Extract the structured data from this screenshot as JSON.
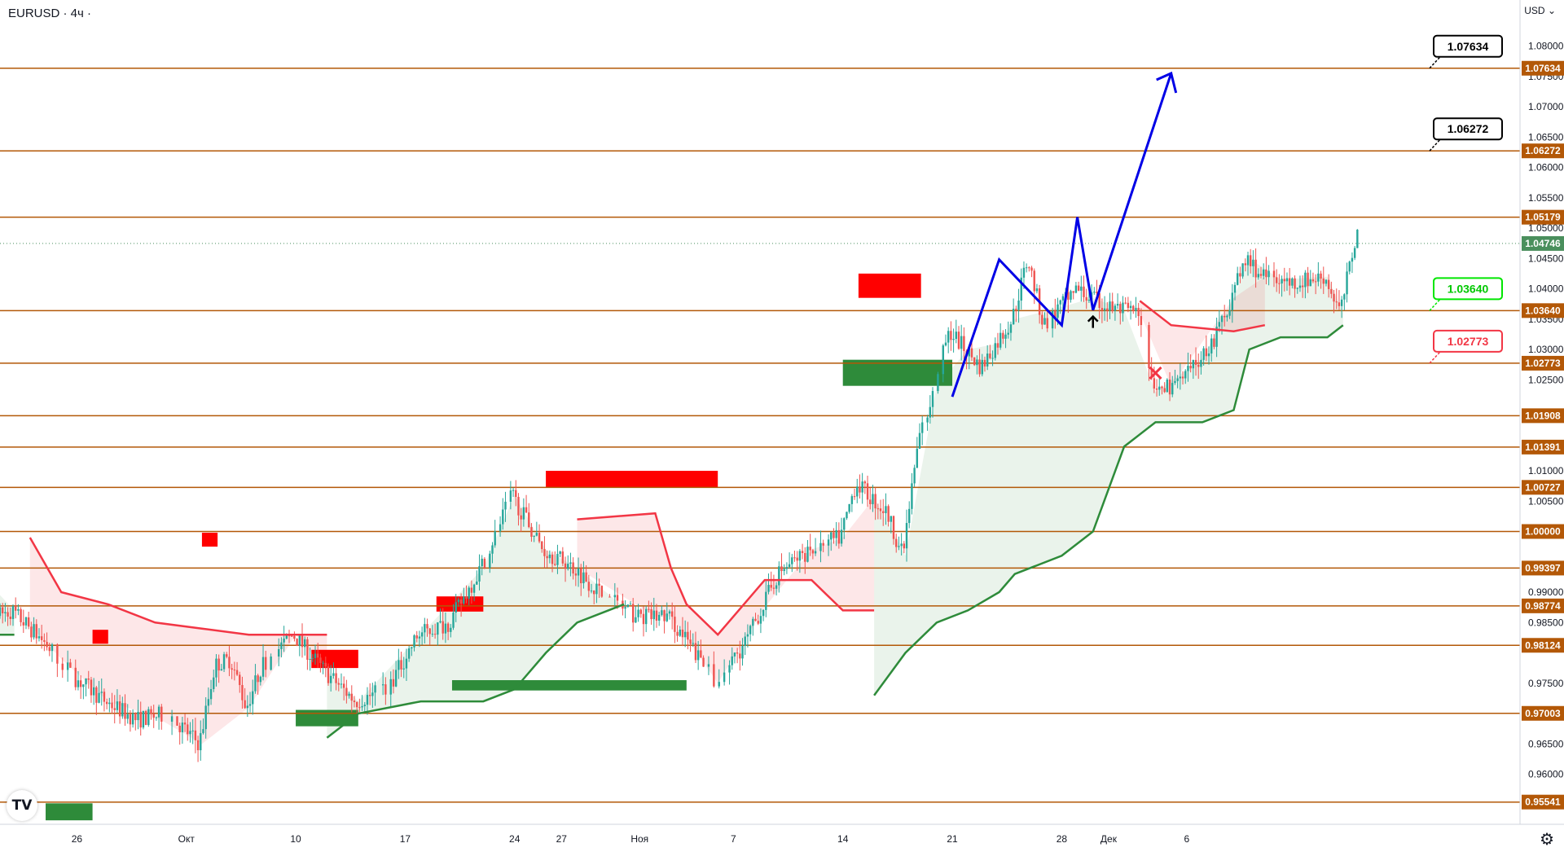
{
  "header": {
    "symbol": "EURUSD · 4ч ·",
    "currency": "USD"
  },
  "logo": {
    "text": "TV"
  },
  "icons": {
    "settings": "gear-icon"
  },
  "colors": {
    "level_line": "#b35807",
    "level_label_bg": "#b35807",
    "current_price_bg": "#4a8f5d",
    "target_box_border": "#000000",
    "entry_label_border": "#00e600",
    "entry_label_text": "#00c800",
    "stop_label_border": "#f23645",
    "stop_label_text": "#f23645",
    "forecast_line": "#0000e6",
    "supertrend_up": "#2e8b3a",
    "supertrend_down": "#f23645",
    "bull_candle": "#26a69a",
    "bear_candle": "#ef5350",
    "supply_zone": "#ff0000",
    "demand_zone": "#2e8b3a"
  },
  "chart_data": {
    "type": "candlestick",
    "symbol": "EURUSD",
    "timeframe": "4ч",
    "currency": "USD",
    "ylim": [
      0.952,
      1.0845
    ],
    "y_ticks": [
      "0.96000",
      "0.96500",
      "0.97500",
      "0.98500",
      "0.99000",
      "1.00500",
      "1.01000",
      "1.02500",
      "1.03000",
      "1.03500",
      "1.04000",
      "1.04500",
      "1.05000",
      "1.05500",
      "1.06000",
      "1.06500",
      "1.07000",
      "1.07500",
      "1.08000"
    ],
    "x_ticks": [
      "26",
      "Окт",
      "10",
      "17",
      "24",
      "27",
      "Ноя",
      "7",
      "14",
      "21",
      "28",
      "Дек",
      "6"
    ],
    "levels": [
      "1.07634",
      "1.06272",
      "1.05179",
      "1.03640",
      "1.02773",
      "1.01908",
      "1.01391",
      "1.00727",
      "1.00000",
      "0.99397",
      "0.98774",
      "0.98124",
      "0.97003",
      "0.95541"
    ],
    "current_price": "1.04746",
    "targets": [
      "1.07634",
      "1.06272"
    ],
    "entry": "1.03640",
    "stop": "1.02773",
    "forecast_path": [
      {
        "date": "2022-11-21",
        "price": 1.0222
      },
      {
        "date": "2022-11-24",
        "price": 1.0448
      },
      {
        "date": "2022-11-28",
        "price": 1.034
      },
      {
        "date": "2022-11-29",
        "price": 1.0518
      },
      {
        "date": "2022-11-30",
        "price": 1.0365
      },
      {
        "date": "2022-12-05",
        "price": 1.0755
      }
    ],
    "supply_zones": [
      {
        "from": "2022-09-27",
        "to": "2022-09-28",
        "low": 0.9815,
        "high": 0.9838
      },
      {
        "from": "2022-10-04",
        "to": "2022-10-05",
        "low": 0.9975,
        "high": 0.9998
      },
      {
        "from": "2022-10-11",
        "to": "2022-10-14",
        "low": 0.9775,
        "high": 0.9805
      },
      {
        "from": "2022-10-19",
        "to": "2022-10-22",
        "low": 0.9868,
        "high": 0.9893
      },
      {
        "from": "2022-10-26",
        "to": "2022-11-06",
        "low": 1.0072,
        "high": 1.01
      },
      {
        "from": "2022-11-15",
        "to": "2022-11-19",
        "low": 1.0385,
        "high": 1.0425
      }
    ],
    "demand_zones": [
      {
        "from": "2022-09-24",
        "to": "2022-09-27",
        "low": 0.9524,
        "high": 0.9552
      },
      {
        "from": "2022-10-10",
        "to": "2022-10-14",
        "low": 0.9679,
        "high": 0.9706
      },
      {
        "from": "2022-10-20",
        "to": "2022-11-04",
        "low": 0.9738,
        "high": 0.9755
      },
      {
        "from": "2022-11-14",
        "to": "2022-11-21",
        "low": 1.024,
        "high": 1.0283
      }
    ]
  }
}
